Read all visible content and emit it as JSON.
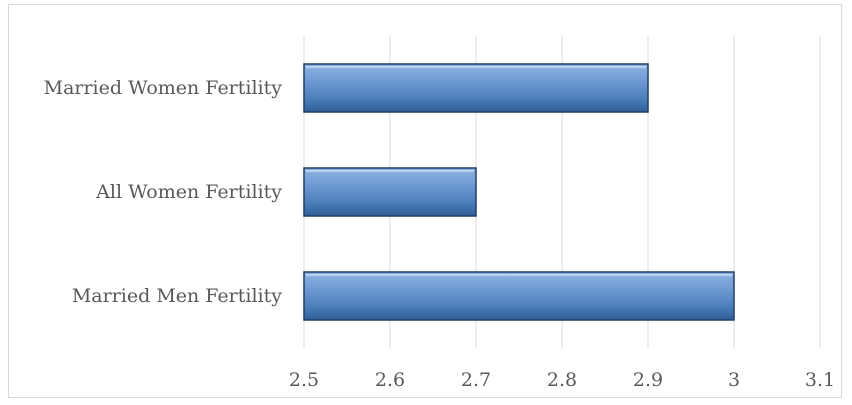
{
  "chart_data": {
    "type": "bar",
    "orientation": "horizontal",
    "categories": [
      "Married Women Fertility",
      "All Women Fertility",
      "Married Men Fertility"
    ],
    "values": [
      2.9,
      2.7,
      3.0
    ],
    "xlim": [
      2.5,
      3.1
    ],
    "xticks": [
      "2.5",
      "2.6",
      "2.7",
      "2.8",
      "2.9",
      "3",
      "3.1"
    ],
    "title": "",
    "xlabel": "",
    "ylabel": "",
    "grid": "vertical",
    "legend": "none",
    "colors": {
      "bar_fill_top": "#8db3e2",
      "bar_fill_mid": "#4f81bd",
      "bar_fill_bottom": "#2c5d98",
      "bar_stroke": "#1f3f66",
      "gridline": "#d9d9d9",
      "text": "#595959"
    }
  }
}
